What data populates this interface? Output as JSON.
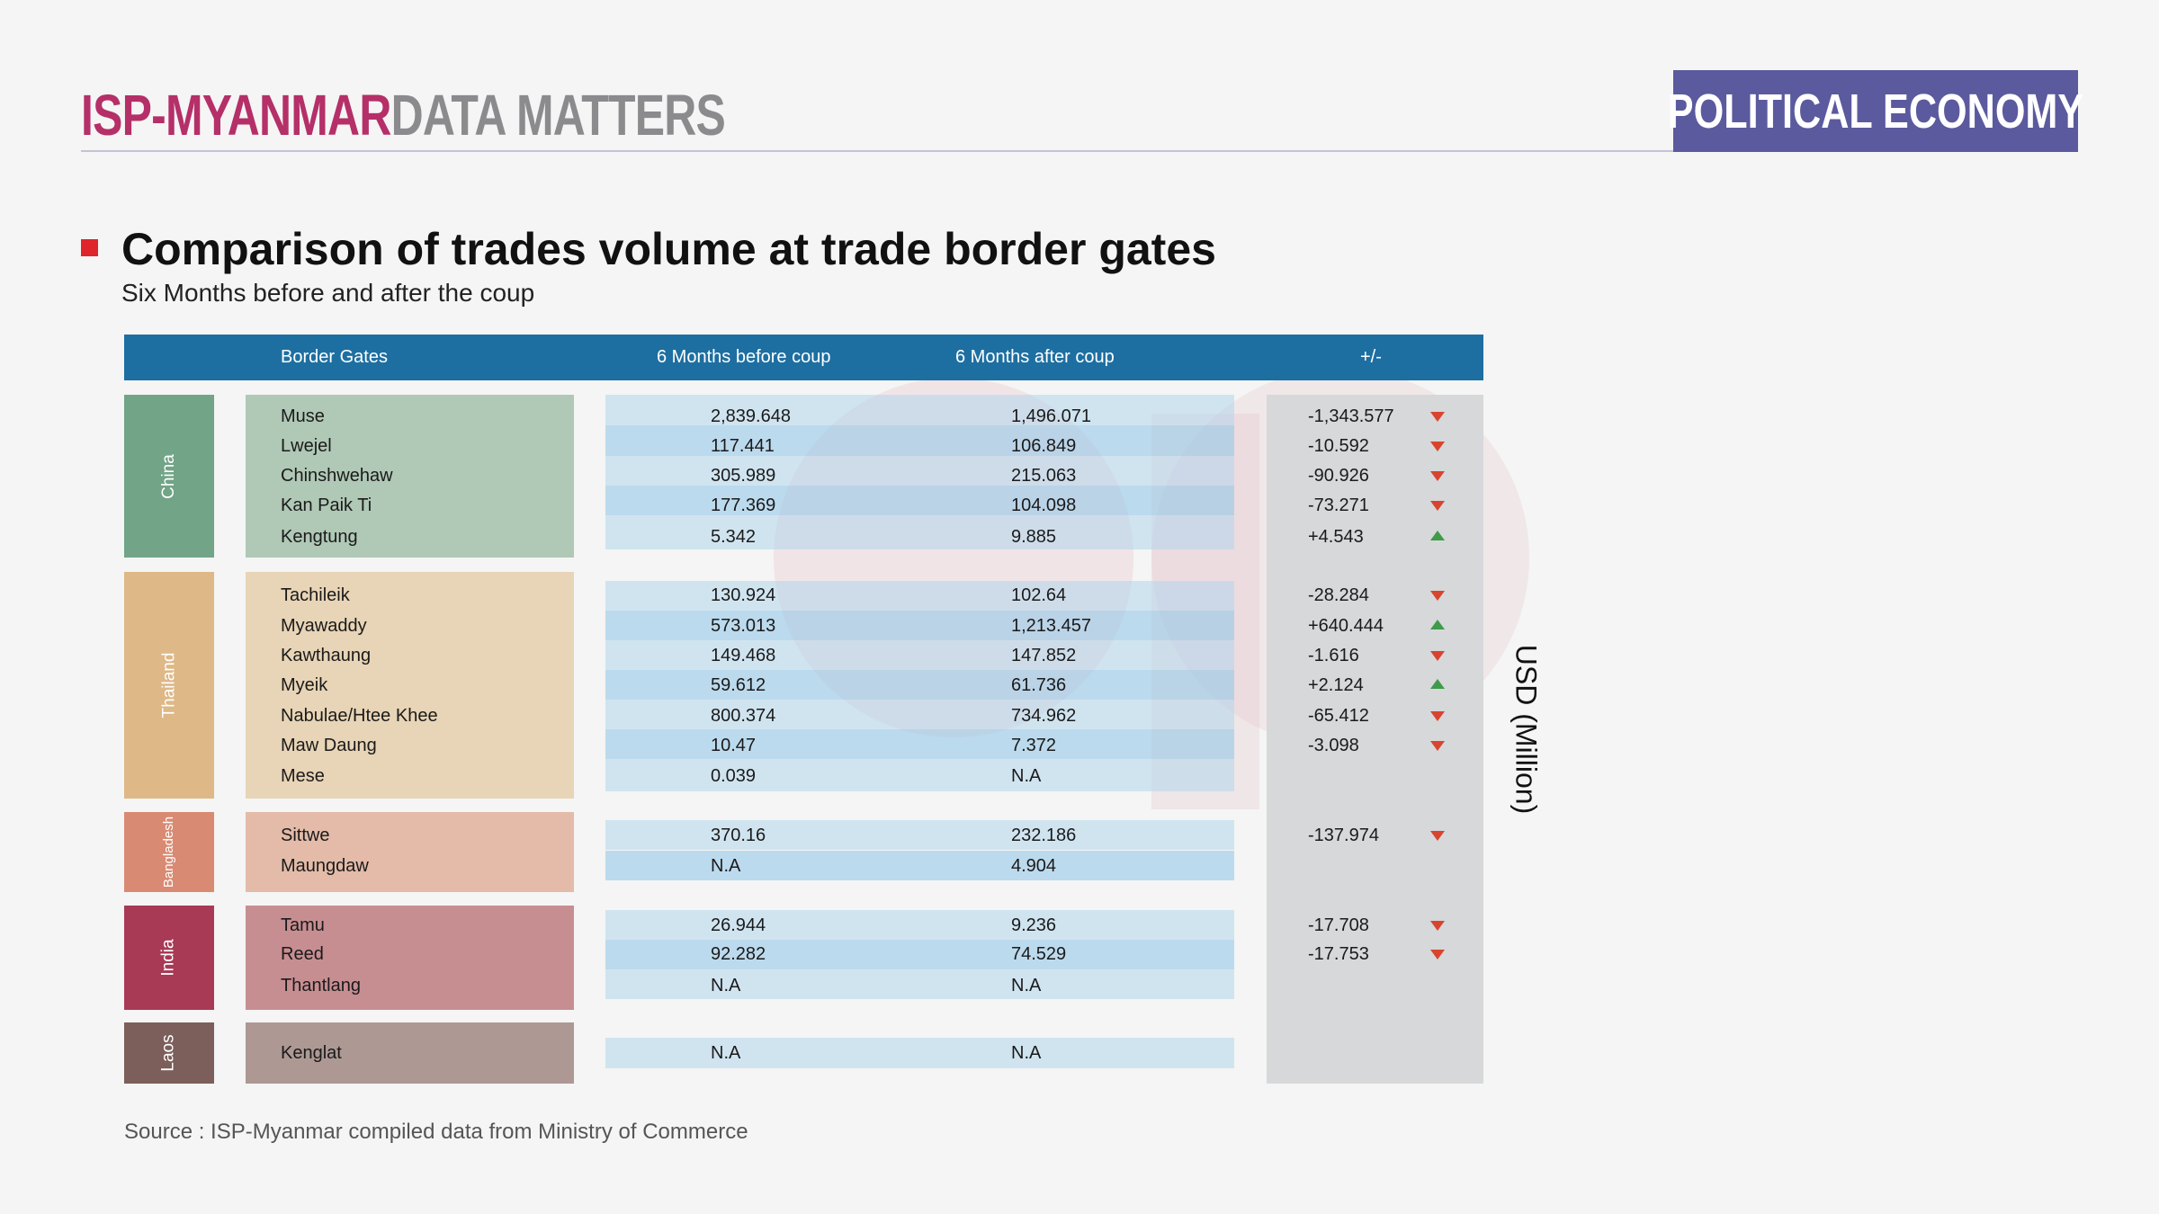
{
  "header": {
    "brand_primary": "ISP-MYANMAR",
    "brand_secondary": "DATA MATTERS",
    "category": "POLITICAL ECONOMY"
  },
  "title": "Comparison of trades volume at trade border gates",
  "subtitle": "Six Months before and after the coup",
  "table": {
    "headers": {
      "gates": "Border Gates",
      "before": "6 Months before coup",
      "after": "6 Months after coup",
      "diff": "+/-"
    },
    "unit_label": "USD (Million)",
    "colors": {
      "header": "#1e6fa1",
      "up": "#3f9a4a",
      "down": "#d9442f"
    },
    "groups": [
      {
        "country": "China",
        "country_color": "#72a487",
        "gate_bg": "#b0c8b6",
        "rows": [
          {
            "gate": "Muse",
            "before": "2,839.648",
            "after": "1,496.071",
            "diff": "-1,343.577",
            "trend": "down"
          },
          {
            "gate": "Lwejel",
            "before": "117.441",
            "after": "106.849",
            "diff": "-10.592",
            "trend": "down"
          },
          {
            "gate": "Chinshwehaw",
            "before": "305.989",
            "after": "215.063",
            "diff": "-90.926",
            "trend": "down"
          },
          {
            "gate": "Kan Paik Ti",
            "before": "177.369",
            "after": "104.098",
            "diff": "-73.271",
            "trend": "down"
          },
          {
            "gate": "Kengtung",
            "before": "5.342",
            "after": "9.885",
            "diff": "+4.543",
            "trend": "up"
          }
        ]
      },
      {
        "country": "Thailand",
        "country_color": "#deb886",
        "gate_bg": "#e8d4b6",
        "rows": [
          {
            "gate": "Tachileik",
            "before": "130.924",
            "after": "102.64",
            "diff": "-28.284",
            "trend": "down"
          },
          {
            "gate": "Myawaddy",
            "before": "573.013",
            "after": "1,213.457",
            "diff": "+640.444",
            "trend": "up"
          },
          {
            "gate": "Kawthaung",
            "before": "149.468",
            "after": "147.852",
            "diff": "-1.616",
            "trend": "down"
          },
          {
            "gate": "Myeik",
            "before": "59.612",
            "after": "61.736",
            "diff": "+2.124",
            "trend": "up"
          },
          {
            "gate": "Nabulae/Htee Khee",
            "before": "800.374",
            "after": "734.962",
            "diff": "-65.412",
            "trend": "down"
          },
          {
            "gate": "Maw Daung",
            "before": "10.47",
            "after": "7.372",
            "diff": "-3.098",
            "trend": "down"
          },
          {
            "gate": "Mese",
            "before": "0.039",
            "after": "N.A",
            "diff": "",
            "trend": ""
          }
        ]
      },
      {
        "country": "Bangladesh",
        "country_color": "#d98a72",
        "gate_bg": "#e3bba8",
        "rows": [
          {
            "gate": "Sittwe",
            "before": "370.16",
            "after": "232.186",
            "diff": "-137.974",
            "trend": "down"
          },
          {
            "gate": "Maungdaw",
            "before": "N.A",
            "after": "4.904",
            "diff": "",
            "trend": ""
          }
        ]
      },
      {
        "country": "India",
        "country_color": "#a83a55",
        "gate_bg": "#c78e92",
        "rows": [
          {
            "gate": "Tamu",
            "before": "26.944",
            "after": "9.236",
            "diff": "-17.708",
            "trend": "down"
          },
          {
            "gate": "Reed",
            "before": "92.282",
            "after": "74.529",
            "diff": "-17.753",
            "trend": "down"
          },
          {
            "gate": "Thantlang",
            "before": "N.A",
            "after": "N.A",
            "diff": "",
            "trend": ""
          }
        ]
      },
      {
        "country": "Laos",
        "country_color": "#7c5e5a",
        "gate_bg": "#ad9894",
        "rows": [
          {
            "gate": "Kenglat",
            "before": "N.A",
            "after": "N.A",
            "diff": "",
            "trend": ""
          }
        ]
      }
    ]
  },
  "source": "Source : ISP-Myanmar compiled data from Ministry of Commerce"
}
